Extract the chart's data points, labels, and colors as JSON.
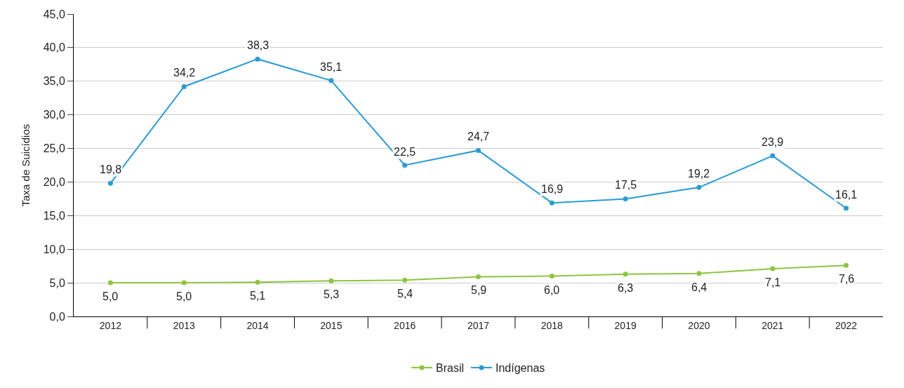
{
  "chart_data": {
    "type": "line",
    "ylabel": "Taxa de Suicídios",
    "categories": [
      "2012",
      "2013",
      "2014",
      "2015",
      "2016",
      "2017",
      "2018",
      "2019",
      "2020",
      "2021",
      "2022"
    ],
    "series": [
      {
        "name": "Brasil",
        "color": "#8cc63f",
        "values": [
          5.0,
          5.0,
          5.1,
          5.3,
          5.4,
          5.9,
          6.0,
          6.3,
          6.4,
          7.1,
          7.6
        ],
        "value_labels": [
          "5,0",
          "5,0",
          "5,1",
          "5,3",
          "5,4",
          "5,9",
          "6,0",
          "6,3",
          "6,4",
          "7,1",
          "7,6"
        ]
      },
      {
        "name": "Indígenas",
        "color": "#2a9bd4",
        "values": [
          19.8,
          34.2,
          38.3,
          35.1,
          22.5,
          24.7,
          16.9,
          17.5,
          19.2,
          23.9,
          16.1
        ],
        "value_labels": [
          "19,8",
          "34,2",
          "38,3",
          "35,1",
          "22,5",
          "24,7",
          "16,9",
          "17,5",
          "19,2",
          "23,9",
          "16,1"
        ]
      }
    ],
    "ylim": [
      0,
      45
    ],
    "yticks": [
      {
        "value": 0,
        "label": "0,0"
      },
      {
        "value": 5,
        "label": "5,0"
      },
      {
        "value": 10,
        "label": "10,0"
      },
      {
        "value": 15,
        "label": "15,0"
      },
      {
        "value": 20,
        "label": "20,0"
      },
      {
        "value": 25,
        "label": "25,0"
      },
      {
        "value": 30,
        "label": "30,0"
      },
      {
        "value": 35,
        "label": "35,0"
      },
      {
        "value": 40,
        "label": "40,0"
      },
      {
        "value": 45,
        "label": "45,0"
      }
    ],
    "grid": "y",
    "legend": "bottom",
    "marker": "circle",
    "line_style": "solid"
  }
}
